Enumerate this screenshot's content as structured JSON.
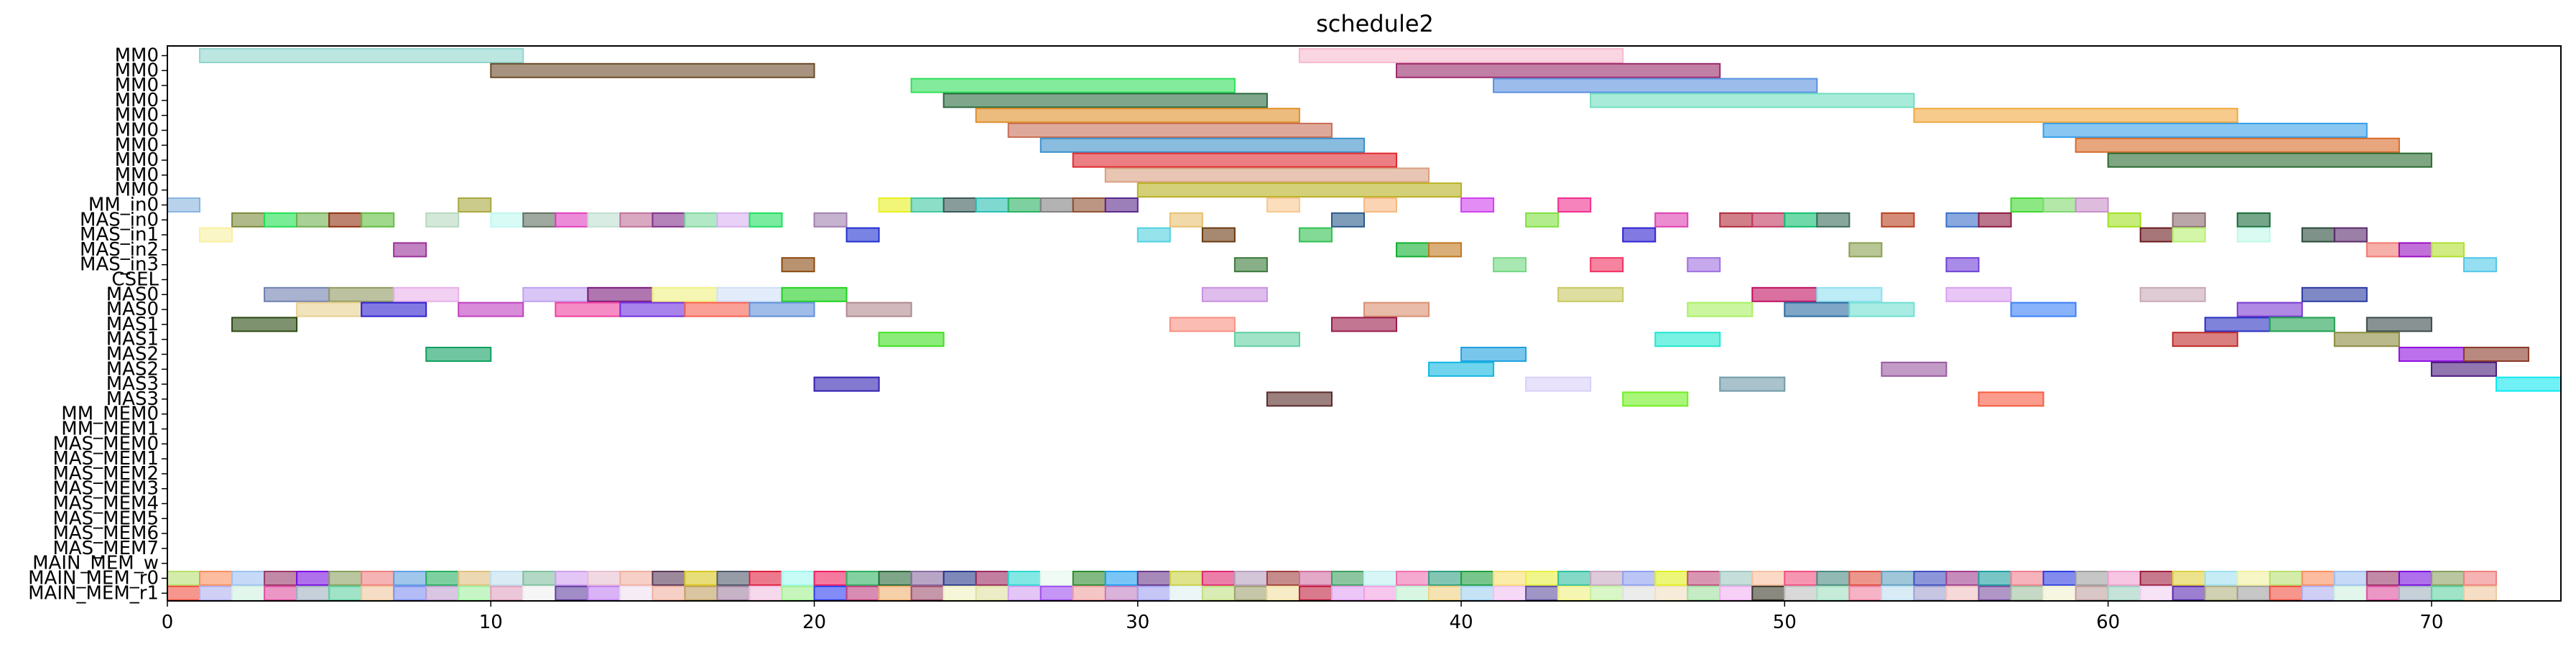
{
  "chart_data": {
    "type": "gantt",
    "title": "schedule2",
    "xlim": [
      0,
      74
    ],
    "x_ticks": [
      0,
      10,
      20,
      30,
      40,
      50,
      60,
      70
    ],
    "grid": false,
    "rows": [
      "MM0",
      "MM0",
      "MM0",
      "MM0",
      "MM0",
      "MM0",
      "MM0",
      "MM0",
      "MM0",
      "MM0",
      "MM_in0",
      "MAS_in0",
      "MAS_in1",
      "MAS_in2",
      "MAS_in3",
      "CSEL",
      "MAS0",
      "MAS0",
      "MAS1",
      "MAS1",
      "MAS2",
      "MAS2",
      "MAS3",
      "MAS3",
      "MM_MEM0",
      "MM_MEM1",
      "MAS_MEM0",
      "MAS_MEM1",
      "MAS_MEM2",
      "MAS_MEM3",
      "MAS_MEM4",
      "MAS_MEM5",
      "MAS_MEM6",
      "MAS_MEM7",
      "MAIN_MEM_w",
      "MAIN_MEM_r0",
      "MAIN_MEM_r1"
    ],
    "bars": [
      {
        "row": 0,
        "start": 1,
        "end": 11,
        "color": "#8fd5cc"
      },
      {
        "row": 0,
        "start": 35,
        "end": 45,
        "color": "#f7b9cf"
      },
      {
        "row": 1,
        "start": 10,
        "end": 20,
        "color": "#6b4a2a"
      },
      {
        "row": 1,
        "start": 38,
        "end": 48,
        "color": "#9a2a6a"
      },
      {
        "row": 2,
        "start": 23,
        "end": 33,
        "color": "#2ee05a"
      },
      {
        "row": 2,
        "start": 41,
        "end": 51,
        "color": "#5a90e0"
      },
      {
        "row": 3,
        "start": 24,
        "end": 34,
        "color": "#2a6a3e"
      },
      {
        "row": 3,
        "start": 44,
        "end": 54,
        "color": "#70dec0"
      },
      {
        "row": 4,
        "start": 25,
        "end": 35,
        "color": "#e0902a"
      },
      {
        "row": 4,
        "start": 54,
        "end": 64,
        "color": "#f0a840"
      },
      {
        "row": 5,
        "start": 26,
        "end": 36,
        "color": "#c87058"
      },
      {
        "row": 5,
        "start": 58,
        "end": 68,
        "color": "#3aa0e8"
      },
      {
        "row": 6,
        "start": 27,
        "end": 37,
        "color": "#3a90c8"
      },
      {
        "row": 6,
        "start": 59,
        "end": 69,
        "color": "#d86a2a"
      },
      {
        "row": 7,
        "start": 28,
        "end": 38,
        "color": "#e02a30"
      },
      {
        "row": 7,
        "start": 60,
        "end": 70,
        "color": "#2a6a30"
      },
      {
        "row": 8,
        "start": 29,
        "end": 39,
        "color": "#d8a080"
      },
      {
        "row": 9,
        "start": 30,
        "end": 40,
        "color": "#b8b020"
      },
      {
        "row": 10,
        "start": 0,
        "end": 1,
        "color": "#8ab4e0"
      },
      {
        "row": 10,
        "start": 9,
        "end": 10,
        "color": "#a8a840"
      },
      {
        "row": 10,
        "start": 22,
        "end": 23,
        "color": "#e8f020"
      },
      {
        "row": 10,
        "start": 23,
        "end": 24,
        "color": "#40c8a0"
      },
      {
        "row": 10,
        "start": 24,
        "end": 25,
        "color": "#3a5a5a"
      },
      {
        "row": 10,
        "start": 25,
        "end": 26,
        "color": "#2ac0b0"
      },
      {
        "row": 10,
        "start": 26,
        "end": 27,
        "color": "#2ab060"
      },
      {
        "row": 10,
        "start": 27,
        "end": 28,
        "color": "#808080"
      },
      {
        "row": 10,
        "start": 28,
        "end": 29,
        "color": "#905030"
      },
      {
        "row": 10,
        "start": 29,
        "end": 30,
        "color": "#5a2a8a"
      },
      {
        "row": 10,
        "start": 34,
        "end": 35,
        "color": "#f8c890"
      },
      {
        "row": 10,
        "start": 37,
        "end": 38,
        "color": "#f8b880"
      },
      {
        "row": 10,
        "start": 40,
        "end": 41,
        "color": "#d040f0"
      },
      {
        "row": 10,
        "start": 43,
        "end": 44,
        "color": "#f03090"
      },
      {
        "row": 10,
        "start": 57,
        "end": 58,
        "color": "#40d830"
      },
      {
        "row": 10,
        "start": 58,
        "end": 59,
        "color": "#80d870"
      },
      {
        "row": 10,
        "start": 59,
        "end": 60,
        "color": "#c890c8"
      },
      {
        "row": 11,
        "start": 2,
        "end": 3,
        "color": "#7a8a3a"
      },
      {
        "row": 11,
        "start": 3,
        "end": 4,
        "color": "#20e050"
      },
      {
        "row": 11,
        "start": 4,
        "end": 5,
        "color": "#70b050"
      },
      {
        "row": 11,
        "start": 5,
        "end": 6,
        "color": "#903010"
      },
      {
        "row": 11,
        "start": 6,
        "end": 7,
        "color": "#60c040"
      },
      {
        "row": 11,
        "start": 8,
        "end": 9,
        "color": "#b8d8c0"
      },
      {
        "row": 11,
        "start": 10,
        "end": 11,
        "color": "#c0f8f0"
      },
      {
        "row": 11,
        "start": 11,
        "end": 12,
        "color": "#607060"
      },
      {
        "row": 11,
        "start": 12,
        "end": 13,
        "color": "#e040c0"
      },
      {
        "row": 11,
        "start": 13,
        "end": 14,
        "color": "#c0e0d0"
      },
      {
        "row": 11,
        "start": 14,
        "end": 15,
        "color": "#c07098"
      },
      {
        "row": 11,
        "start": 15,
        "end": 16,
        "color": "#80308a"
      },
      {
        "row": 11,
        "start": 16,
        "end": 17,
        "color": "#80d8a0"
      },
      {
        "row": 11,
        "start": 17,
        "end": 18,
        "color": "#d8b0f0"
      },
      {
        "row": 11,
        "start": 18,
        "end": 19,
        "color": "#20e060"
      },
      {
        "row": 11,
        "start": 20,
        "end": 21,
        "color": "#a080b0"
      },
      {
        "row": 11,
        "start": 31,
        "end": 32,
        "color": "#e8c070"
      },
      {
        "row": 11,
        "start": 36,
        "end": 37,
        "color": "#2a5a8a"
      },
      {
        "row": 11,
        "start": 42,
        "end": 43,
        "color": "#80e040"
      },
      {
        "row": 11,
        "start": 46,
        "end": 47,
        "color": "#e040b0"
      },
      {
        "row": 11,
        "start": 48,
        "end": 49,
        "color": "#b02a3a"
      },
      {
        "row": 11,
        "start": 49,
        "end": 50,
        "color": "#c03860"
      },
      {
        "row": 11,
        "start": 50,
        "end": 51,
        "color": "#10c070"
      },
      {
        "row": 11,
        "start": 51,
        "end": 52,
        "color": "#3a6a5a"
      },
      {
        "row": 11,
        "start": 53,
        "end": 54,
        "color": "#b84020"
      },
      {
        "row": 11,
        "start": 55,
        "end": 56,
        "color": "#3a70c8"
      },
      {
        "row": 11,
        "start": 56,
        "end": 57,
        "color": "#8a1a40"
      },
      {
        "row": 11,
        "start": 60,
        "end": 61,
        "color": "#a0e020"
      },
      {
        "row": 11,
        "start": 62,
        "end": 63,
        "color": "#8a6a70"
      },
      {
        "row": 11,
        "start": 64,
        "end": 65,
        "color": "#1a6a3a"
      },
      {
        "row": 12,
        "start": 1,
        "end": 2,
        "color": "#f8f0a0"
      },
      {
        "row": 12,
        "start": 21,
        "end": 22,
        "color": "#2030d0"
      },
      {
        "row": 12,
        "start": 30,
        "end": 31,
        "color": "#50d0e0"
      },
      {
        "row": 12,
        "start": 32,
        "end": 33,
        "color": "#6a3a10"
      },
      {
        "row": 12,
        "start": 35,
        "end": 36,
        "color": "#30c050"
      },
      {
        "row": 12,
        "start": 45,
        "end": 46,
        "color": "#3020d0"
      },
      {
        "row": 12,
        "start": 61,
        "end": 62,
        "color": "#6a1a20"
      },
      {
        "row": 12,
        "start": 62,
        "end": 63,
        "color": "#b8f070"
      },
      {
        "row": 12,
        "start": 64,
        "end": 65,
        "color": "#c0f8e8"
      },
      {
        "row": 12,
        "start": 66,
        "end": 67,
        "color": "#2a4a3a"
      },
      {
        "row": 12,
        "start": 67,
        "end": 68,
        "color": "#5a2a6a"
      },
      {
        "row": 13,
        "start": 7,
        "end": 8,
        "color": "#9a309a"
      },
      {
        "row": 13,
        "start": 38,
        "end": 39,
        "color": "#10b030"
      },
      {
        "row": 13,
        "start": 39,
        "end": 40,
        "color": "#c07820"
      },
      {
        "row": 13,
        "start": 52,
        "end": 53,
        "color": "#8aa050"
      },
      {
        "row": 13,
        "start": 68,
        "end": 69,
        "color": "#f07a70"
      },
      {
        "row": 13,
        "start": 69,
        "end": 70,
        "color": "#9a10c0"
      },
      {
        "row": 13,
        "start": 70,
        "end": 71,
        "color": "#b0e030"
      },
      {
        "row": 14,
        "start": 19,
        "end": 20,
        "color": "#8a4a10"
      },
      {
        "row": 14,
        "start": 33,
        "end": 34,
        "color": "#3a7a3a"
      },
      {
        "row": 14,
        "start": 41,
        "end": 42,
        "color": "#70d880"
      },
      {
        "row": 14,
        "start": 44,
        "end": 45,
        "color": "#f03060"
      },
      {
        "row": 14,
        "start": 47,
        "end": 48,
        "color": "#a070e0"
      },
      {
        "row": 14,
        "start": 55,
        "end": 56,
        "color": "#7040d8"
      },
      {
        "row": 14,
        "start": 71,
        "end": 72,
        "color": "#50c8e8"
      },
      {
        "row": 16,
        "start": 3,
        "end": 5,
        "color": "#7080b0"
      },
      {
        "row": 16,
        "start": 5,
        "end": 7,
        "color": "#909a60"
      },
      {
        "row": 16,
        "start": 7,
        "end": 9,
        "color": "#e8b0e8"
      },
      {
        "row": 16,
        "start": 11,
        "end": 13,
        "color": "#c0a0f0"
      },
      {
        "row": 16,
        "start": 13,
        "end": 15,
        "color": "#7a1a7a"
      },
      {
        "row": 16,
        "start": 15,
        "end": 17,
        "color": "#f0f080"
      },
      {
        "row": 16,
        "start": 17,
        "end": 19,
        "color": "#d0e0f8"
      },
      {
        "row": 16,
        "start": 19,
        "end": 21,
        "color": "#20d020"
      },
      {
        "row": 16,
        "start": 32,
        "end": 34,
        "color": "#c890e0"
      },
      {
        "row": 16,
        "start": 43,
        "end": 45,
        "color": "#c8c860"
      },
      {
        "row": 16,
        "start": 49,
        "end": 51,
        "color": "#c01060"
      },
      {
        "row": 16,
        "start": 51,
        "end": 53,
        "color": "#90e0f0"
      },
      {
        "row": 16,
        "start": 55,
        "end": 57,
        "color": "#d8a0f0"
      },
      {
        "row": 16,
        "start": 61,
        "end": 63,
        "color": "#c8a8b8"
      },
      {
        "row": 16,
        "start": 66,
        "end": 68,
        "color": "#2a3aa0"
      },
      {
        "row": 17,
        "start": 4,
        "end": 6,
        "color": "#e8d090"
      },
      {
        "row": 17,
        "start": 6,
        "end": 8,
        "color": "#3020d0"
      },
      {
        "row": 17,
        "start": 9,
        "end": 11,
        "color": "#c040c0"
      },
      {
        "row": 17,
        "start": 12,
        "end": 14,
        "color": "#f040a0"
      },
      {
        "row": 17,
        "start": 14,
        "end": 16,
        "color": "#7030e0"
      },
      {
        "row": 17,
        "start": 16,
        "end": 18,
        "color": "#f86050"
      },
      {
        "row": 17,
        "start": 18,
        "end": 20,
        "color": "#6090d8"
      },
      {
        "row": 17,
        "start": 21,
        "end": 23,
        "color": "#b08890"
      },
      {
        "row": 17,
        "start": 37,
        "end": 39,
        "color": "#d89070"
      },
      {
        "row": 17,
        "start": 47,
        "end": 49,
        "color": "#a8f060"
      },
      {
        "row": 17,
        "start": 50,
        "end": 52,
        "color": "#2a6aa0"
      },
      {
        "row": 17,
        "start": 52,
        "end": 54,
        "color": "#70e0d0"
      },
      {
        "row": 17,
        "start": 57,
        "end": 59,
        "color": "#3a80f8"
      },
      {
        "row": 17,
        "start": 64,
        "end": 66,
        "color": "#7a3ad0"
      },
      {
        "row": 18,
        "start": 2,
        "end": 4,
        "color": "#2a4a10"
      },
      {
        "row": 18,
        "start": 31,
        "end": 33,
        "color": "#f89080"
      },
      {
        "row": 18,
        "start": 36,
        "end": 38,
        "color": "#9a1a4a"
      },
      {
        "row": 18,
        "start": 63,
        "end": 65,
        "color": "#2a30c0"
      },
      {
        "row": 18,
        "start": 65,
        "end": 67,
        "color": "#20a050"
      },
      {
        "row": 18,
        "start": 68,
        "end": 70,
        "color": "#3a4a4a"
      },
      {
        "row": 19,
        "start": 22,
        "end": 24,
        "color": "#40e020"
      },
      {
        "row": 19,
        "start": 33,
        "end": 35,
        "color": "#60d0a0"
      },
      {
        "row": 19,
        "start": 46,
        "end": 48,
        "color": "#20e8d0"
      },
      {
        "row": 19,
        "start": 62,
        "end": 64,
        "color": "#c02a2a"
      },
      {
        "row": 19,
        "start": 67,
        "end": 69,
        "color": "#8a8a40"
      },
      {
        "row": 20,
        "start": 8,
        "end": 10,
        "color": "#10a060"
      },
      {
        "row": 20,
        "start": 40,
        "end": 42,
        "color": "#20a0e0"
      },
      {
        "row": 20,
        "start": 69,
        "end": 71,
        "color": "#9010e0"
      },
      {
        "row": 20,
        "start": 71,
        "end": 73,
        "color": "#8a3a2a"
      },
      {
        "row": 21,
        "start": 39,
        "end": 41,
        "color": "#10b8e0"
      },
      {
        "row": 21,
        "start": 53,
        "end": 55,
        "color": "#9a5aa0"
      },
      {
        "row": 21,
        "start": 70,
        "end": 72,
        "color": "#4a1a7a"
      },
      {
        "row": 22,
        "start": 20,
        "end": 22,
        "color": "#3020b0"
      },
      {
        "row": 22,
        "start": 42,
        "end": 44,
        "color": "#d8d0f8"
      },
      {
        "row": 22,
        "start": 48,
        "end": 50,
        "color": "#709aa8"
      },
      {
        "row": 22,
        "start": 72,
        "end": 74,
        "color": "#10e8f0"
      },
      {
        "row": 23,
        "start": 34,
        "end": 36,
        "color": "#5a2a2a"
      },
      {
        "row": 23,
        "start": 45,
        "end": 47,
        "color": "#70f020"
      },
      {
        "row": 23,
        "start": 56,
        "end": 58,
        "color": "#f85a40"
      }
    ],
    "bottom_rows_palette": {
      "row_35": [
        "#b8e070",
        "#f89060",
        "#a0c0f0",
        "#9a3a6a",
        "#7a10e0",
        "#8aa060",
        "#f08080",
        "#60a0e0",
        "#2ab060",
        "#e0c080",
        "#c0e0f0",
        "#80c0a0",
        "#d0a0f0",
        "#e8c0d0",
        "#f0b0a0",
        "#5a3a5a",
        "#d8c820",
        "#505a6a",
        "#e02040",
        "#a0f8f0",
        "#f02060",
        "#30b060",
        "#2a6a3a",
        "#8a6aa0",
        "#2a3a8a",
        "#9a2a60",
        "#30d8d0",
        "#e8f8f0",
        "#308a30",
        "#20a0f0",
        "#6a3a8a",
        "#c8d040",
        "#e02a70",
        "#b8a0c0",
        "#a04040",
        "#d070a0",
        "#40a060",
        "#c0f0f0",
        "#f070b0",
        "#30a080",
        "#20a040",
        "#f8e070",
        "#e8f040",
        "#30c0a0",
        "#c8a8c0",
        "#90a0f0",
        "#e0f020",
        "#c05080",
        "#a0c8c0",
        "#f8c0a0",
        "#f05080",
        "#4a8a80",
        "#e05040",
        "#60a0c0",
        "#4050c0",
        "#a04090",
        "#20a0a0",
        "#f08090",
        "#3040e0",
        "#a0a0a0",
        "#f0a0d0",
        "#a02040",
        "#e0d040",
        "#a0e0f0",
        "#f0f0a0"
      ],
      "row_36": [
        "#f05040",
        "#b0b0f0",
        "#d0f0e0",
        "#e050a0",
        "#a0b0c0",
        "#60d0a0",
        "#f0c8a0",
        "#8090f0",
        "#c0a0d0",
        "#a0f0a0",
        "#e0a0c0",
        "#f0f0f0",
        "#6040a0",
        "#c080f0",
        "#f0e0f0",
        "#f0b0a0",
        "#c0a060",
        "#a080a0",
        "#f0c0e0",
        "#a0f090",
        "#3040f0",
        "#c04080",
        "#f0b070",
        "#a05070",
        "#f0f0c0",
        "#e0e0a0",
        "#d0a0f0",
        "#a050f0",
        "#f0a0a0",
        "#c080c0",
        "#a0a0f0",
        "#e0f0f0",
        "#c0e080",
        "#a0a070",
        "#f0e0a0",
        "#c02040",
        "#e0a0f0",
        "#f0a0e0",
        "#c0f0d0",
        "#f0d080",
        "#a0d0f0",
        "#f0c0f0",
        "#6050a0",
        "#f0f080",
        "#c0f0a0",
        "#e0e0e0",
        "#f0e0c0",
        "#a0e0a0",
        "#f0b0f0",
        "#3a3a2a",
        "#c0c0c0",
        "#a0e0c0",
        "#f080a0",
        "#c0e0f0",
        "#a0a0d0",
        "#f0c0c0",
        "#7a50a0",
        "#a0c0a0",
        "#f0f0d0",
        "#c0a0a0",
        "#a0d0c0",
        "#f0d0f0",
        "#5a2ab0",
        "#b0b080",
        "#a0a0a0"
      ]
    }
  }
}
